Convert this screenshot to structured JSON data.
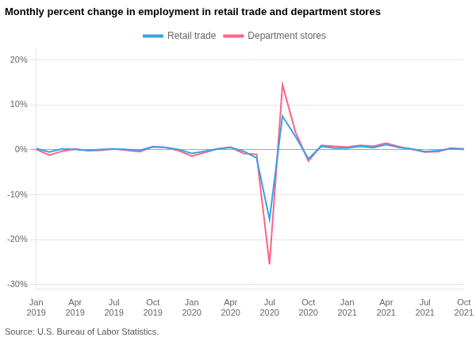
{
  "chart_data": {
    "type": "line",
    "title": "Monthly percent change in employment in retail trade and department stores",
    "source": "Source: U.S. Bureau of Labor Statistics.",
    "categories": [
      "Jan\n2019",
      null,
      null,
      "Apr\n2019",
      null,
      null,
      "Jul\n2019",
      null,
      null,
      "Oct\n2019",
      null,
      null,
      "Jan\n2020",
      null,
      null,
      "Apr\n2020",
      null,
      null,
      "Jul\n2020",
      null,
      null,
      "Oct\n2020",
      null,
      null,
      "Jan\n2021",
      null,
      null,
      "Apr\n2021",
      null,
      null,
      "Jul\n2021",
      null,
      null,
      "Oct\n2021"
    ],
    "series": [
      {
        "name": "Retail trade",
        "values": [
          0.003,
          -0.005,
          0.002,
          0.001,
          -0.001,
          0.001,
          0.002,
          0.001,
          -0.001,
          0.007,
          0.005,
          0.001,
          -0.008,
          -0.003,
          0.002,
          0.005,
          -0.003,
          -0.018,
          -0.155,
          0.075,
          0.03,
          -0.02,
          0.008,
          0.004,
          0.004,
          0.008,
          0.005,
          0.012,
          0.005,
          0.002,
          -0.004,
          -0.002,
          0.003,
          0.001
        ]
      },
      {
        "name": "Department stores",
        "values": [
          0.001,
          -0.012,
          -0.003,
          0.002,
          -0.002,
          -0.001,
          0.002,
          -0.001,
          -0.004,
          0.007,
          0.005,
          -0.002,
          -0.014,
          -0.006,
          0.002,
          0.006,
          -0.008,
          -0.01,
          -0.255,
          0.145,
          0.04,
          -0.025,
          0.01,
          0.008,
          0.006,
          0.01,
          0.008,
          0.015,
          0.007,
          0.001,
          -0.005,
          -0.004,
          0.004,
          0.002
        ]
      }
    ],
    "ylim": [
      -0.31,
      0.225
    ],
    "yticks": [
      {
        "value": -0.3,
        "label": "-30%"
      },
      {
        "value": -0.2,
        "label": "-20%"
      },
      {
        "value": -0.1,
        "label": "-10%"
      },
      {
        "value": 0.0,
        "label": "0%"
      },
      {
        "value": 0.1,
        "label": "10%"
      },
      {
        "value": 0.2,
        "label": "20%"
      }
    ],
    "grid": "y",
    "legend": "top"
  }
}
